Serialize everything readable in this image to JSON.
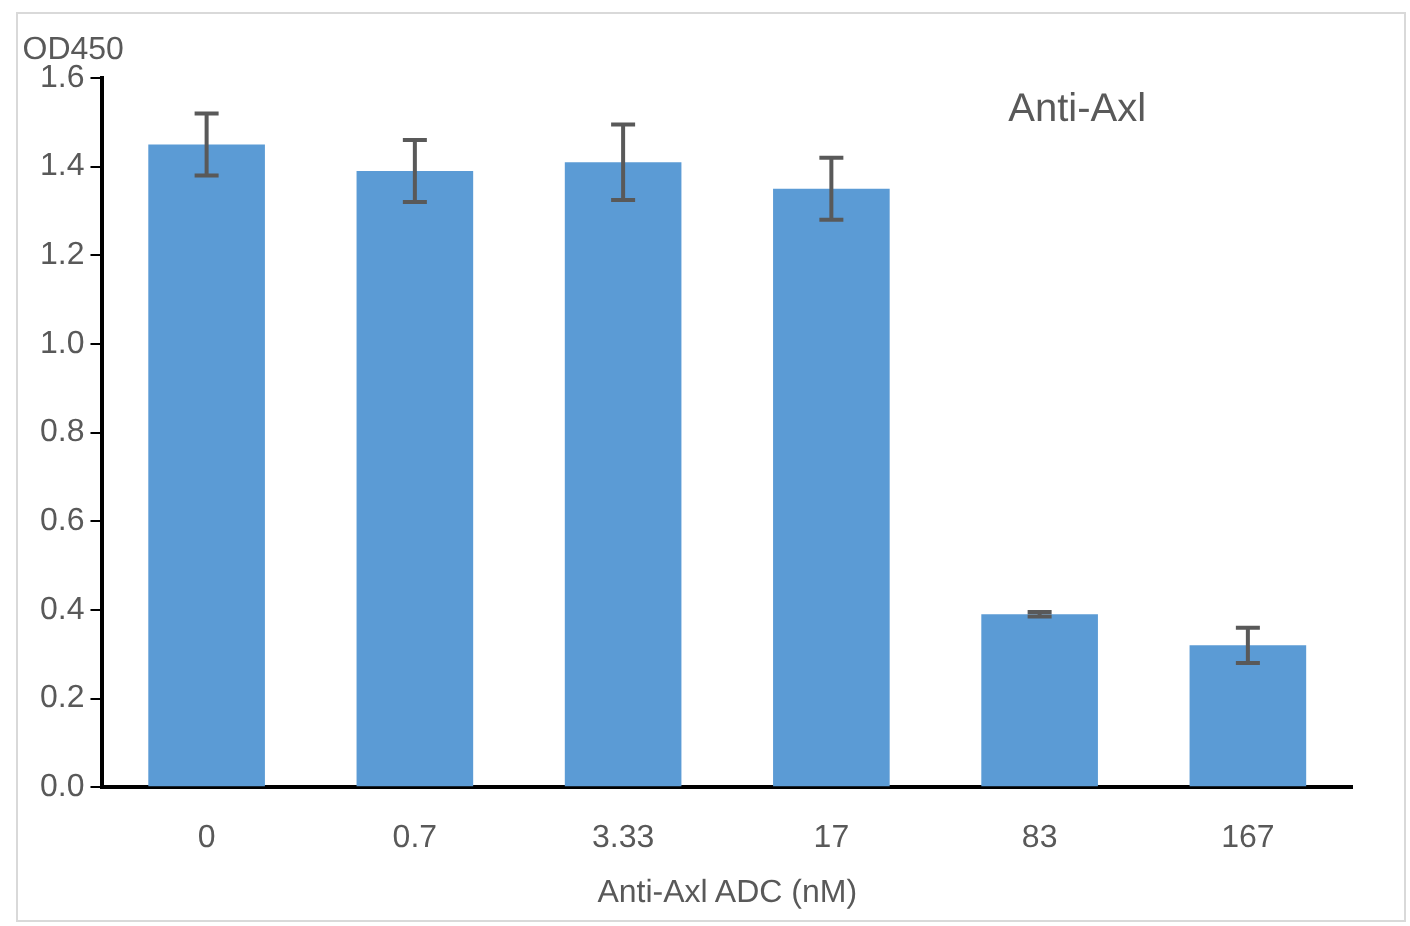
{
  "chart_data": {
    "type": "bar",
    "xlabel": "Anti-Axl ADC (nM)",
    "ylabel": "OD450",
    "annotations": [
      "Anti-Axl"
    ],
    "categories": [
      "0",
      "0.7",
      "3.33",
      "17",
      "83",
      "167"
    ],
    "values": [
      1.45,
      1.39,
      1.41,
      1.35,
      0.39,
      0.32
    ],
    "errors": [
      0.07,
      0.07,
      0.085,
      0.07,
      0.005,
      0.04
    ],
    "color": "#5b9bd5",
    "ylim": [
      0,
      1.6
    ],
    "yticks": [
      {
        "value": 0,
        "label": "0.0"
      },
      {
        "value": 0.2,
        "label": "0.2"
      },
      {
        "value": 0.4,
        "label": "0.4"
      },
      {
        "value": 0.6,
        "label": "0.6"
      },
      {
        "value": 0.8,
        "label": "0.8"
      },
      {
        "value": 1,
        "label": "1.0"
      },
      {
        "value": 1.2,
        "label": "1.2"
      },
      {
        "value": 1.4,
        "label": "1.4"
      },
      {
        "value": 1.6,
        "label": "1.6"
      }
    ],
    "grid": false,
    "legend": false
  }
}
